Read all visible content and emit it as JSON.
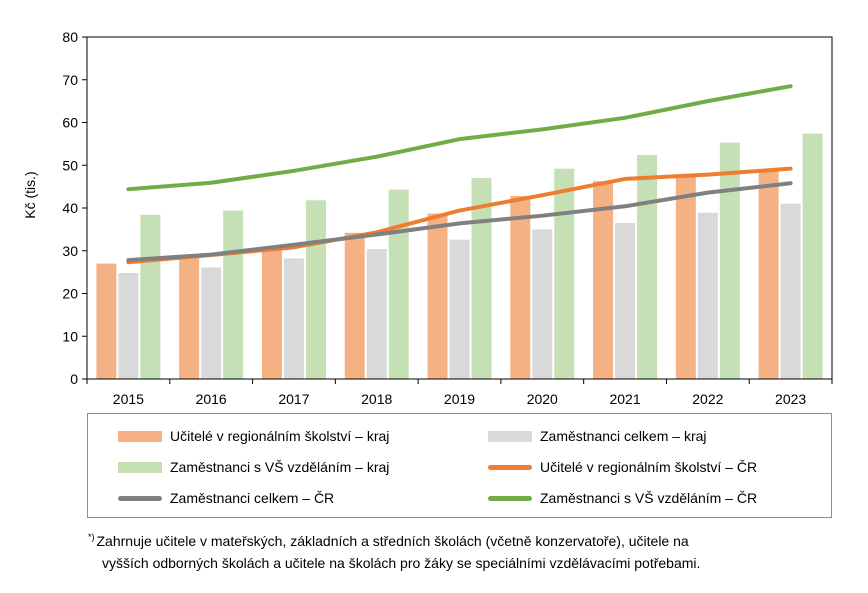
{
  "chart_data": {
    "type": "bar",
    "ylabel": "Kč (tis.)",
    "ylim": [
      0,
      80
    ],
    "yticks": [
      0,
      10,
      20,
      30,
      40,
      50,
      60,
      70,
      80
    ],
    "categories": [
      "2015",
      "2016",
      "2017",
      "2018",
      "2019",
      "2020",
      "2021",
      "2022",
      "2023"
    ],
    "bar_series": [
      {
        "name": "Učitelé v regionálním školství  – kraj",
        "color": "#f4b183",
        "values": [
          27.0,
          28.6,
          30.5,
          34.2,
          38.7,
          42.8,
          46.3,
          47.6,
          49.0
        ]
      },
      {
        "name": "Zaměstnanci  celkem – kraj",
        "color": "#d9d9d9",
        "values": [
          24.8,
          26.1,
          28.2,
          30.4,
          32.6,
          35.0,
          36.5,
          38.9,
          41.0
        ]
      },
      {
        "name": "Zaměstnanci  s VŠ vzděláním  – kraj",
        "color": "#c5e0b4",
        "values": [
          38.4,
          39.4,
          41.8,
          44.3,
          47.0,
          49.2,
          52.4,
          55.3,
          57.4
        ]
      }
    ],
    "line_series": [
      {
        "name": "Učitelé v regionálním školství  – ČR",
        "color": "#ed7d31",
        "values": [
          27.3,
          29.0,
          30.8,
          34.3,
          39.4,
          43.0,
          46.8,
          47.8,
          49.2
        ]
      },
      {
        "name": "Zaměstnanci  celkem – ČR",
        "color": "#808080",
        "values": [
          27.8,
          29.1,
          31.4,
          33.8,
          36.4,
          38.2,
          40.4,
          43.6,
          45.8
        ]
      },
      {
        "name": "Zaměstnanci  s VŠ vzděláním  – ČR",
        "color": "#70ad47",
        "values": [
          44.4,
          45.9,
          48.7,
          52.0,
          56.1,
          58.4,
          61.1,
          65.0,
          68.5
        ]
      }
    ]
  },
  "legend": {
    "items": [
      {
        "label": "Učitelé v regionálním školství  – kraj",
        "kind": "bar",
        "color": "#f4b183"
      },
      {
        "label": "Zaměstnanci  celkem – kraj",
        "kind": "bar",
        "color": "#d9d9d9"
      },
      {
        "label": "Zaměstnanci  s VŠ vzděláním  – kraj",
        "kind": "bar",
        "color": "#c5e0b4"
      },
      {
        "label": "Učitelé v regionálním školství  – ČR",
        "kind": "line",
        "color": "#ed7d31"
      },
      {
        "label": "Zaměstnanci  celkem – ČR",
        "kind": "line",
        "color": "#808080"
      },
      {
        "label": "Zaměstnanci  s VŠ vzděláním  – ČR",
        "kind": "line",
        "color": "#70ad47"
      }
    ]
  },
  "footnote": {
    "marker": "*)",
    "line1": "Zahrnuje  učitele v mateřských, základních a středních školách (včetně konzervatoře),  učitele na",
    "line2": "vyšších odborných školách a učitele na školách pro žáky se speciálními vzdělávacími  potřebami."
  }
}
